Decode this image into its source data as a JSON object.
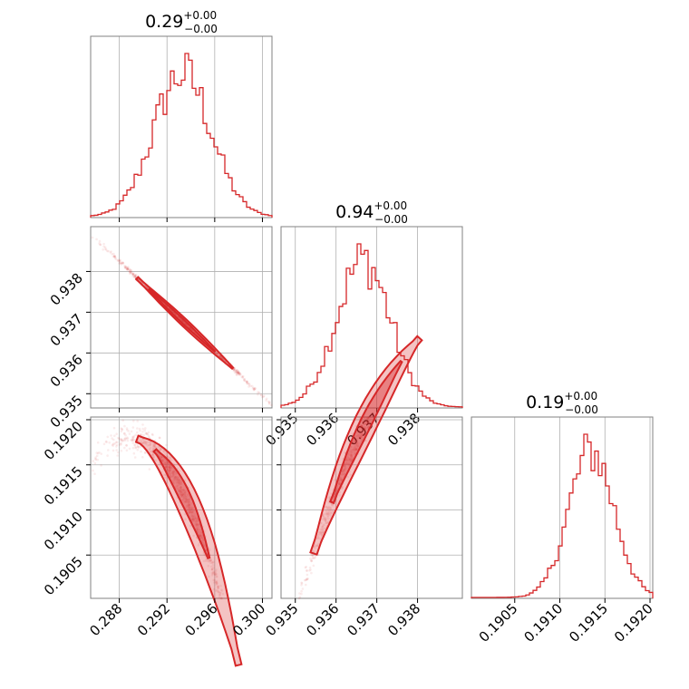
{
  "chart_data": [
    {
      "type": "histogram",
      "panel": "hist-p1",
      "title": {
        "value": "0.29",
        "plus": "+0.00",
        "minus": "−0.00"
      },
      "xlim": [
        0.2856,
        0.3008
      ],
      "xticks": [
        0.288,
        0.292,
        0.296,
        0.3
      ],
      "xticklabels": [],
      "center": 0.2933,
      "sd": 0.0024
    },
    {
      "type": "histogram",
      "panel": "hist-p2",
      "title": {
        "value": "0.94",
        "plus": "+0.00",
        "minus": "−0.00"
      },
      "xlim": [
        0.93465,
        0.9391
      ],
      "xticks": [
        0.935,
        0.936,
        0.937,
        0.938
      ],
      "xticklabels": [
        "0.935",
        "0.936",
        "0.937",
        "0.938"
      ],
      "center": 0.93667,
      "sd": 0.00066
    },
    {
      "type": "histogram",
      "panel": "hist-p3",
      "title": {
        "value": "0.19",
        "plus": "+0.00",
        "minus": "−0.00"
      },
      "xlim": [
        0.19002,
        0.19203
      ],
      "xticks": [
        0.1905,
        0.191,
        0.1915,
        0.192
      ],
      "xticklabels": [
        "0.1905",
        "0.1910",
        "0.1915",
        "0.1920"
      ],
      "center": 0.19135,
      "sd": 0.00025
    },
    {
      "type": "scatter-contour",
      "panel": "p1-vs-p2",
      "xlim": [
        0.2856,
        0.3008
      ],
      "ylim": [
        0.93465,
        0.9391
      ],
      "yticks": [
        0.935,
        0.936,
        0.937,
        0.938
      ],
      "yticklabels": [
        "0.935",
        "0.936",
        "0.937",
        "0.938"
      ],
      "relation": "strong negative linear",
      "line_start": [
        0.2868,
        0.93858
      ],
      "line_end": [
        0.3005,
        0.9348
      ]
    },
    {
      "type": "scatter-contour",
      "panel": "p1-vs-p3",
      "xlim": [
        0.2856,
        0.3008
      ],
      "ylim": [
        0.19002,
        0.19203
      ],
      "xticks": [
        0.288,
        0.292,
        0.296,
        0.3
      ],
      "xticklabels": [
        "0.288",
        "0.292",
        "0.296",
        "0.300"
      ],
      "yticks": [
        0.1905,
        0.191,
        0.1915,
        0.192
      ],
      "yticklabels": [
        "0.1905",
        "0.1910",
        "0.1915",
        "0.1920"
      ],
      "relation": "negative curved"
    },
    {
      "type": "scatter-contour",
      "panel": "p2-vs-p3",
      "xlim": [
        0.93465,
        0.9391
      ],
      "ylim": [
        0.19002,
        0.19203
      ],
      "xticks": [
        0.935,
        0.936,
        0.937,
        0.938
      ],
      "xticklabels": [
        "0.935",
        "0.936",
        "0.937",
        "0.938"
      ],
      "yticks": [
        0.1905,
        0.191,
        0.1915,
        0.192
      ],
      "yticklabels": [],
      "relation": "positive curved"
    }
  ],
  "colors": {
    "series": "#d62728",
    "frame": "#808080",
    "grid": "#b0b0b0"
  }
}
